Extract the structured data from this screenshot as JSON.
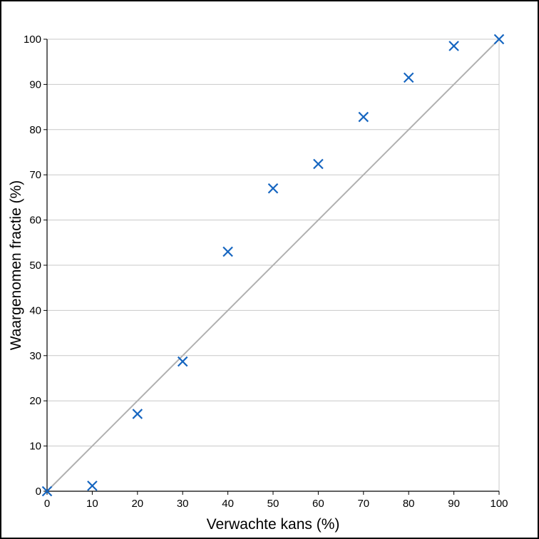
{
  "chart_data": {
    "type": "scatter",
    "xlabel": "Verwachte kans (%)",
    "ylabel": "Waargenomen fractie (%)",
    "xlim": [
      0,
      100
    ],
    "ylim": [
      0,
      100
    ],
    "x_ticks": [
      0,
      10,
      20,
      30,
      40,
      50,
      60,
      70,
      80,
      90,
      100
    ],
    "y_ticks": [
      0,
      10,
      20,
      30,
      40,
      50,
      60,
      70,
      80,
      90,
      100
    ],
    "grid": "horizontal",
    "reference_line": {
      "x": [
        0,
        100
      ],
      "y": [
        0,
        100
      ]
    },
    "series": [
      {
        "marker": "x",
        "x": [
          0,
          10,
          20,
          30,
          40,
          50,
          60,
          70,
          80,
          90,
          100
        ],
        "y": [
          0,
          1.2,
          17.1,
          28.7,
          53.0,
          67.0,
          72.4,
          82.8,
          91.5,
          98.5,
          100
        ]
      }
    ],
    "colors": {
      "marker": "#1565c0",
      "reference_line": "#b0b0b0",
      "grid": "#c8c8c8",
      "axis": "#000000"
    }
  }
}
